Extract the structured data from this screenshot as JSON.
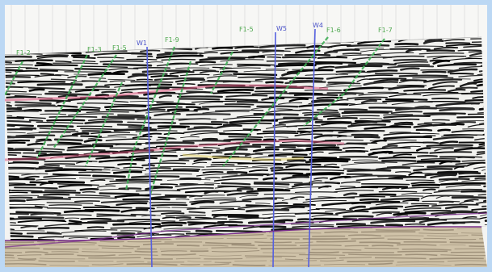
{
  "fault_labels": [
    "F1-2",
    "F1-3",
    "F1-5",
    "F1-9",
    "F1-5",
    "F1-6",
    "F1-7"
  ],
  "well_labels": [
    "W1",
    "W5",
    "W4"
  ],
  "colors": {
    "frame": "#bcd8f4",
    "fault": "#3fae55",
    "well": "#5560e0",
    "horizon_red": "#d8507a",
    "horizon_yellow": "#e6d36a",
    "horizon_purple": "#7a2f8c",
    "basement": "#cfc2a8"
  }
}
